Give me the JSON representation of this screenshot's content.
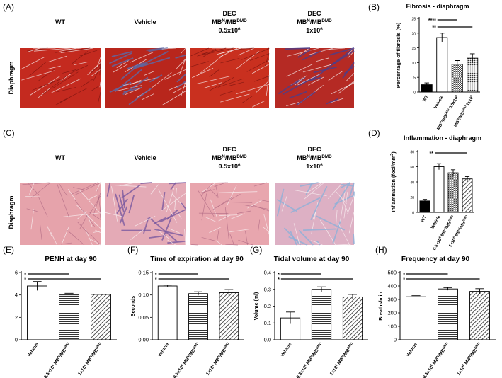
{
  "panels": {
    "labels": [
      "(A)",
      "(B)",
      "(C)",
      "(D)",
      "(E)",
      "(F)",
      "(G)",
      "(H)"
    ]
  },
  "histology": [
    {
      "row_label": "Diaphragm",
      "headers": [
        [
          "WT"
        ],
        [
          "Vehicle"
        ],
        [
          "DEC",
          [
            "MB",
            {
              "sup": "N"
            },
            "/MB",
            {
              "sup": "DMD"
            }
          ],
          [
            "0.5x10",
            {
              "sup": "6"
            }
          ]
        ],
        [
          "DEC",
          [
            "MB",
            {
              "sup": "N"
            },
            "/MB",
            {
              "sup": "DMD"
            }
          ],
          [
            "1x10",
            {
              "sup": "6"
            }
          ]
        ]
      ]
    },
    {
      "row_label": "Diaphragm",
      "headers": [
        [
          "WT"
        ],
        [
          "Vehicle"
        ],
        [
          "DEC",
          [
            "MB",
            {
              "sup": "N"
            },
            "/MB",
            {
              "sup": "DMD"
            }
          ],
          [
            "0.5x10",
            {
              "sup": "6"
            }
          ]
        ],
        [
          "DEC",
          [
            "MB",
            {
              "sup": "N"
            },
            "/MB",
            {
              "sup": "DMD"
            }
          ],
          [
            "1x10",
            {
              "sup": "6"
            }
          ]
        ]
      ]
    }
  ],
  "chart_data": [
    {
      "type": "bar",
      "title": "Fibrosis - diaphragm",
      "y_label": "Percentage of fibrosis (%)",
      "categories": [
        "WT",
        "Vehicle",
        [
          "MB",
          {
            "sup": "N"
          },
          "/MB",
          {
            "sup": "DMD"
          },
          " 0.5x10",
          {
            "sup": "6"
          }
        ],
        [
          "MB",
          {
            "sup": "N"
          },
          "/MB",
          {
            "sup": "DMD"
          },
          " 1x10",
          {
            "sup": "6"
          }
        ]
      ],
      "values": [
        2.5,
        18.5,
        9.5,
        11.5
      ],
      "errors": [
        0.6,
        1.5,
        1.2,
        1.5
      ],
      "fills": [
        "#000000",
        "#ffffff",
        "crosshatch",
        "dots"
      ],
      "ylim": [
        0,
        25
      ],
      "yticks": [
        0,
        5,
        10,
        15,
        20,
        25
      ],
      "significance": [
        {
          "label": "****",
          "from": 1,
          "to": 2
        },
        {
          "label": "**",
          "from": 1,
          "to": 3
        }
      ]
    },
    {
      "type": "bar",
      "title": "Inflammation - diaphragm",
      "y_label": [
        "Inflammation (foci/mm",
        {
          "sup": "2"
        },
        ")"
      ],
      "categories": [
        "WT",
        "Vehicle",
        [
          "0.5x10",
          {
            "sup": "6"
          },
          " MB",
          {
            "sup": "N"
          },
          "/MB",
          {
            "sup": "DMD"
          }
        ],
        [
          "1x10",
          {
            "sup": "6"
          },
          " MB",
          {
            "sup": "N"
          },
          "/MB",
          {
            "sup": "DMD"
          }
        ]
      ],
      "values": [
        15,
        60,
        52,
        44
      ],
      "errors": [
        2,
        4,
        4,
        3
      ],
      "fills": [
        "#000000",
        "#ffffff",
        "crosshatch",
        "diag"
      ],
      "ylim": [
        0,
        80
      ],
      "yticks": [
        0,
        20,
        40,
        60,
        80
      ],
      "significance": [
        {
          "label": "**",
          "from": 1,
          "to": 3
        }
      ]
    },
    {
      "type": "bar",
      "title": "PENH at day 90",
      "categories": [
        "Vehicle",
        [
          "0.5x10",
          {
            "sup": "6"
          },
          " MB",
          {
            "sup": "N"
          },
          "/MB",
          {
            "sup": "DMD"
          }
        ],
        [
          "1x10",
          {
            "sup": "6"
          },
          " MB",
          {
            "sup": "N"
          },
          "/MB",
          {
            "sup": "DMD"
          }
        ]
      ],
      "values": [
        4.8,
        4.0,
        4.05
      ],
      "errors": [
        0.4,
        0.15,
        0.4
      ],
      "fills": [
        "#ffffff",
        "hlines",
        "diag"
      ],
      "ylim": [
        0,
        6
      ],
      "yticks": [
        0,
        2,
        4,
        6
      ],
      "significance": [
        {
          "label": "*",
          "from": 0,
          "to": 1
        },
        {
          "label": "*",
          "from": 0,
          "to": 2
        }
      ]
    },
    {
      "type": "bar",
      "title": "Time of expiration at day 90",
      "y_label": "Seconds",
      "categories": [
        "Vehicle",
        [
          "0.5x10",
          {
            "sup": "6"
          },
          " MB",
          {
            "sup": "N"
          },
          "/MB",
          {
            "sup": "DMD"
          }
        ],
        [
          "1x10",
          {
            "sup": "6"
          },
          " MB",
          {
            "sup": "N"
          },
          "/MB",
          {
            "sup": "DMD"
          }
        ]
      ],
      "values": [
        0.12,
        0.103,
        0.105
      ],
      "errors": [
        0.002,
        0.004,
        0.007
      ],
      "fills": [
        "#ffffff",
        "hlines",
        "diag"
      ],
      "ylim": [
        0,
        0.15
      ],
      "yticks": [
        {
          "value": 0,
          "label": "0.00"
        },
        0.05,
        {
          "value": 0.1,
          "label": "0.10"
        },
        0.15
      ],
      "significance": [
        {
          "label": "*",
          "from": 0,
          "to": 1
        },
        {
          "label": "*",
          "from": 0,
          "to": 2
        }
      ]
    },
    {
      "type": "bar",
      "title": "Tidal volume at day 90",
      "y_label": "Volume (ml)",
      "categories": [
        "Vehicle",
        [
          "0.5x10",
          {
            "sup": "6"
          },
          " MB",
          {
            "sup": "N"
          },
          "/MB",
          {
            "sup": "DMD"
          }
        ],
        [
          "1x10",
          {
            "sup": "6"
          },
          " MB",
          {
            "sup": "N"
          },
          "/MB",
          {
            "sup": "DMD"
          }
        ]
      ],
      "values": [
        0.13,
        0.3,
        0.255
      ],
      "errors": [
        0.035,
        0.015,
        0.015
      ],
      "fills": [
        "#ffffff",
        "hlines",
        "diag"
      ],
      "ylim": [
        0,
        0.4
      ],
      "yticks": [
        {
          "value": 0,
          "label": "0.0"
        },
        0.1,
        0.2,
        0.3,
        0.4
      ],
      "significance": [
        {
          "label": "*",
          "from": 0,
          "to": 1
        },
        {
          "label": "*",
          "from": 0,
          "to": 2
        }
      ]
    },
    {
      "type": "bar",
      "title": "Frequency at day 90",
      "y_label": "Breaths/min",
      "categories": [
        "Vehicle",
        [
          "0.5x10",
          {
            "sup": "6"
          },
          " MB",
          {
            "sup": "N"
          },
          "/MB",
          {
            "sup": "DMD"
          }
        ],
        [
          "1x10",
          {
            "sup": "6"
          },
          " MB",
          {
            "sup": "N"
          },
          "/MB",
          {
            "sup": "DMD"
          }
        ]
      ],
      "values": [
        320,
        378,
        360
      ],
      "errors": [
        8,
        10,
        20
      ],
      "fills": [
        "#ffffff",
        "hlines",
        "diag"
      ],
      "ylim": [
        0,
        500
      ],
      "yticks": [
        0,
        100,
        200,
        300,
        400,
        500
      ],
      "significance": [
        {
          "label": "*",
          "from": 0,
          "to": 1
        },
        {
          "label": "*",
          "from": 0,
          "to": 2
        }
      ]
    }
  ]
}
